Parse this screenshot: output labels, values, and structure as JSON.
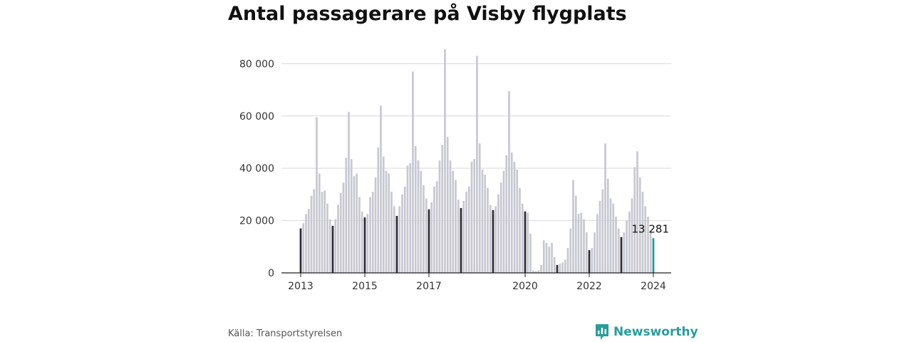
{
  "title": "Antal passagerare på Visby flygplats",
  "source": "Källa: Transportstyrelsen",
  "brand": {
    "name": "Newsworthy",
    "icon": "newsworthy-logo-icon",
    "color": "#2a9d9a"
  },
  "colors": {
    "bar": "#c8c8d2",
    "january": "#2b2b35",
    "highlight": "#1a9a96",
    "grid": "#d9d9d9",
    "axis": "#222222"
  },
  "chart_data": {
    "type": "bar",
    "title": "Antal passagerare på Visby flygplats",
    "xlabel": "",
    "ylabel": "",
    "ylim": [
      0,
      88000
    ],
    "yticks": [
      0,
      20000,
      40000,
      60000,
      80000
    ],
    "ytick_labels": [
      "0",
      "20 000",
      "40 000",
      "60 000",
      "80 000"
    ],
    "xtick_labels": [
      {
        "label": "2013",
        "index": 0
      },
      {
        "label": "2015",
        "index": 24
      },
      {
        "label": "2017",
        "index": 48
      },
      {
        "label": "2020",
        "index": 84
      },
      {
        "label": "2022",
        "index": 108
      },
      {
        "label": "2024",
        "index": 132
      }
    ],
    "start": "2013-01",
    "end": "2024-01",
    "values": [
      17000,
      19000,
      22500,
      24500,
      29500,
      32000,
      59500,
      38000,
      31000,
      31500,
      26500,
      20500,
      18000,
      20500,
      26000,
      30500,
      34500,
      44000,
      61500,
      43500,
      37000,
      38000,
      29000,
      23500,
      21200,
      22500,
      29000,
      31000,
      36500,
      48000,
      64000,
      44500,
      39000,
      38000,
      31000,
      25500,
      21800,
      25500,
      30000,
      33000,
      41000,
      42000,
      77000,
      48500,
      43000,
      39000,
      33500,
      28500,
      24300,
      27000,
      33000,
      35000,
      43000,
      49000,
      85500,
      52000,
      43000,
      39000,
      35500,
      28000,
      24800,
      27500,
      31000,
      33000,
      42500,
      43500,
      83000,
      49500,
      39500,
      37500,
      32500,
      26000,
      24000,
      25500,
      30000,
      34500,
      39000,
      45000,
      69500,
      46000,
      42500,
      39500,
      32500,
      26500,
      23500,
      23000,
      15000,
      1000,
      700,
      1000,
      3000,
      12500,
      11500,
      10000,
      11500,
      6000,
      3000,
      3500,
      4000,
      5000,
      9500,
      17000,
      35500,
      29500,
      22500,
      23000,
      20500,
      15500,
      8700,
      9500,
      15500,
      22500,
      27500,
      32000,
      49500,
      36000,
      28500,
      26500,
      21500,
      17000,
      13700,
      15500,
      20000,
      23500,
      28500,
      40500,
      46500,
      36500,
      31000,
      25500,
      21500,
      15500,
      13281
    ],
    "annotation": {
      "label": "13 281",
      "index": 132
    }
  }
}
